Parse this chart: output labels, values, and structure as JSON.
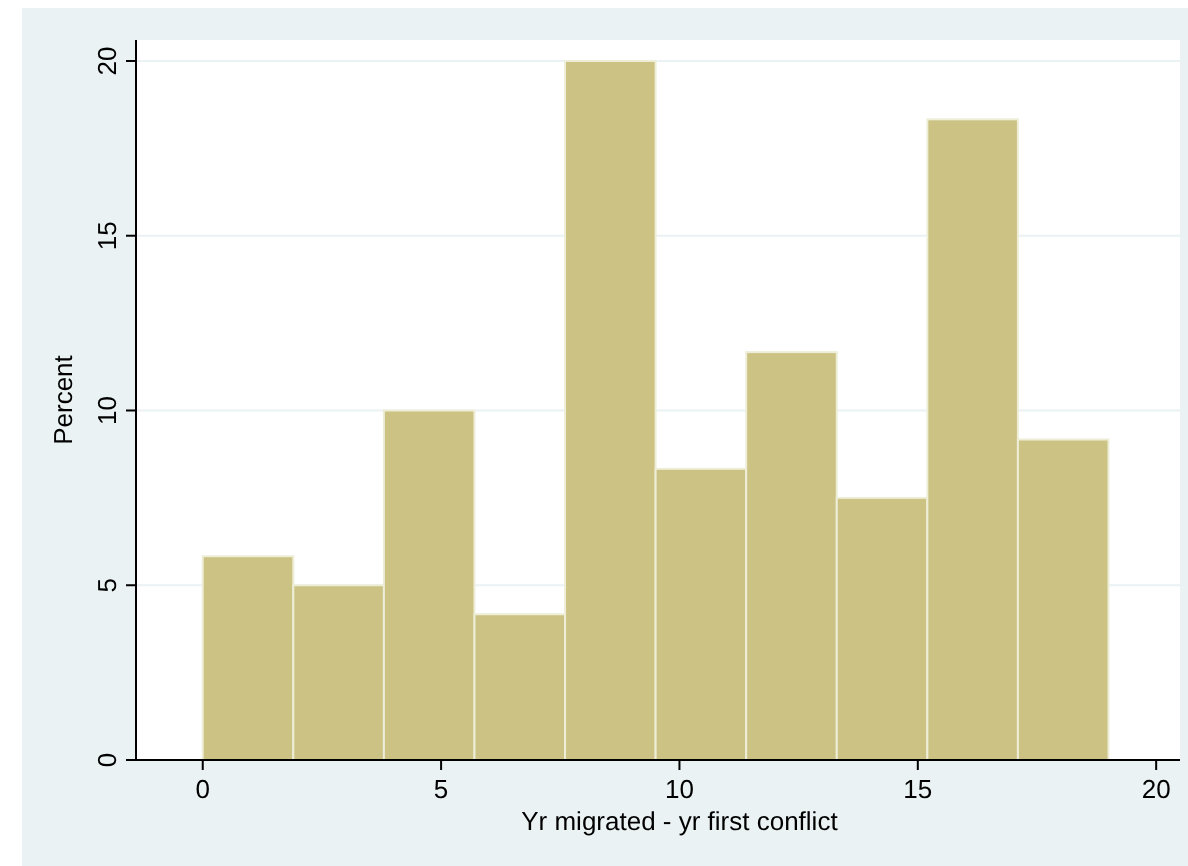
{
  "chart_data": {
    "type": "histogram",
    "xlabel": "Yr migrated - yr first conflict",
    "ylabel": "Percent",
    "bins": [
      0,
      1.9,
      3.8,
      5.7,
      7.6,
      9.5,
      11.4,
      13.3,
      15.2,
      17.1,
      19
    ],
    "values": [
      5.83,
      5,
      10,
      4.17,
      20,
      8.33,
      11.67,
      7.5,
      18.33,
      9.17
    ],
    "color": "#cbc283",
    "xlim": [
      -1.4,
      20.5
    ],
    "xticks": [
      0,
      5,
      10,
      15,
      20
    ],
    "ylim": [
      0,
      20.6
    ],
    "yticks": [
      0,
      5,
      10,
      15,
      20
    ],
    "grid": "y"
  }
}
